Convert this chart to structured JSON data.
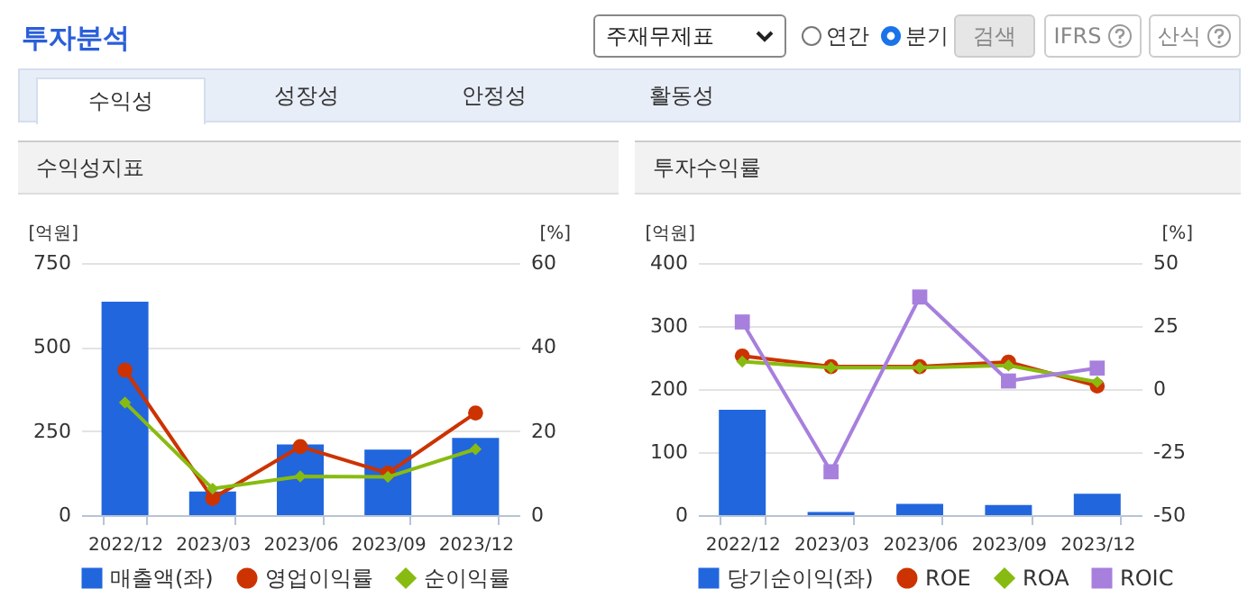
{
  "chart_data": [
    {
      "type": "other",
      "title": "투자분석",
      "annotations": [
        "주재무제표",
        "연간",
        "분기",
        "검색",
        "IFRS",
        "산식",
        "수익성",
        "성장성",
        "안정성",
        "활동성"
      ]
    },
    {
      "type": "bar",
      "title": "수익성지표",
      "ylabel": "[억원]",
      "y2label": "[%]",
      "categories": [
        "2022/12",
        "2023/03",
        "2023/06",
        "2023/09",
        "2023/12"
      ],
      "ylim": [
        0,
        750
      ],
      "yticks": [
        0,
        250,
        500,
        750
      ],
      "y2lim": [
        0,
        60
      ],
      "y2ticks": [
        0,
        20,
        40,
        60
      ],
      "grid": "y",
      "legend": "bottom",
      "series": [
        {
          "name": "매출액(좌)",
          "type": "bar",
          "color": "#2166dd",
          "values": [
            635,
            70,
            210,
            195,
            230
          ]
        },
        {
          "name": "영업이익률",
          "type": "line",
          "axis": "y2",
          "marker": "circle",
          "color": "#cc3300",
          "values": [
            34.5,
            4,
            16.3,
            10,
            24.3
          ]
        },
        {
          "name": "순이익률",
          "type": "line",
          "axis": "y2",
          "marker": "diamond",
          "color": "#88bb11",
          "values": [
            26.8,
            6.3,
            9.2,
            9.1,
            15.7
          ]
        }
      ]
    },
    {
      "type": "bar",
      "title": "투자수익률",
      "ylabel": "[억원]",
      "y2label": "[%]",
      "categories": [
        "2022/12",
        "2023/03",
        "2023/06",
        "2023/09",
        "2023/12"
      ],
      "ylim": [
        0,
        400
      ],
      "yticks": [
        0,
        100,
        200,
        300,
        400
      ],
      "y2lim": [
        -50,
        50
      ],
      "y2ticks": [
        -50,
        -25,
        0,
        25,
        50
      ],
      "grid": "y",
      "legend": "bottom",
      "series": [
        {
          "name": "당기순이익(좌)",
          "type": "bar",
          "color": "#2166dd",
          "values": [
            167,
            5,
            18,
            16,
            34
          ]
        },
        {
          "name": "ROE",
          "type": "line",
          "axis": "y2",
          "marker": "circle",
          "color": "#cc3300",
          "values": [
            13.1,
            8.9,
            8.9,
            10.7,
            1.2
          ]
        },
        {
          "name": "ROA",
          "type": "line",
          "axis": "y2",
          "marker": "diamond",
          "color": "#88bb11",
          "values": [
            10.9,
            8.5,
            8.5,
            9.4,
            2.8
          ]
        },
        {
          "name": "ROIC",
          "type": "line",
          "axis": "y2",
          "marker": "square",
          "color": "#a77fdd",
          "values": [
            26.6,
            -32.8,
            36.5,
            3.2,
            8.3
          ]
        }
      ]
    }
  ]
}
